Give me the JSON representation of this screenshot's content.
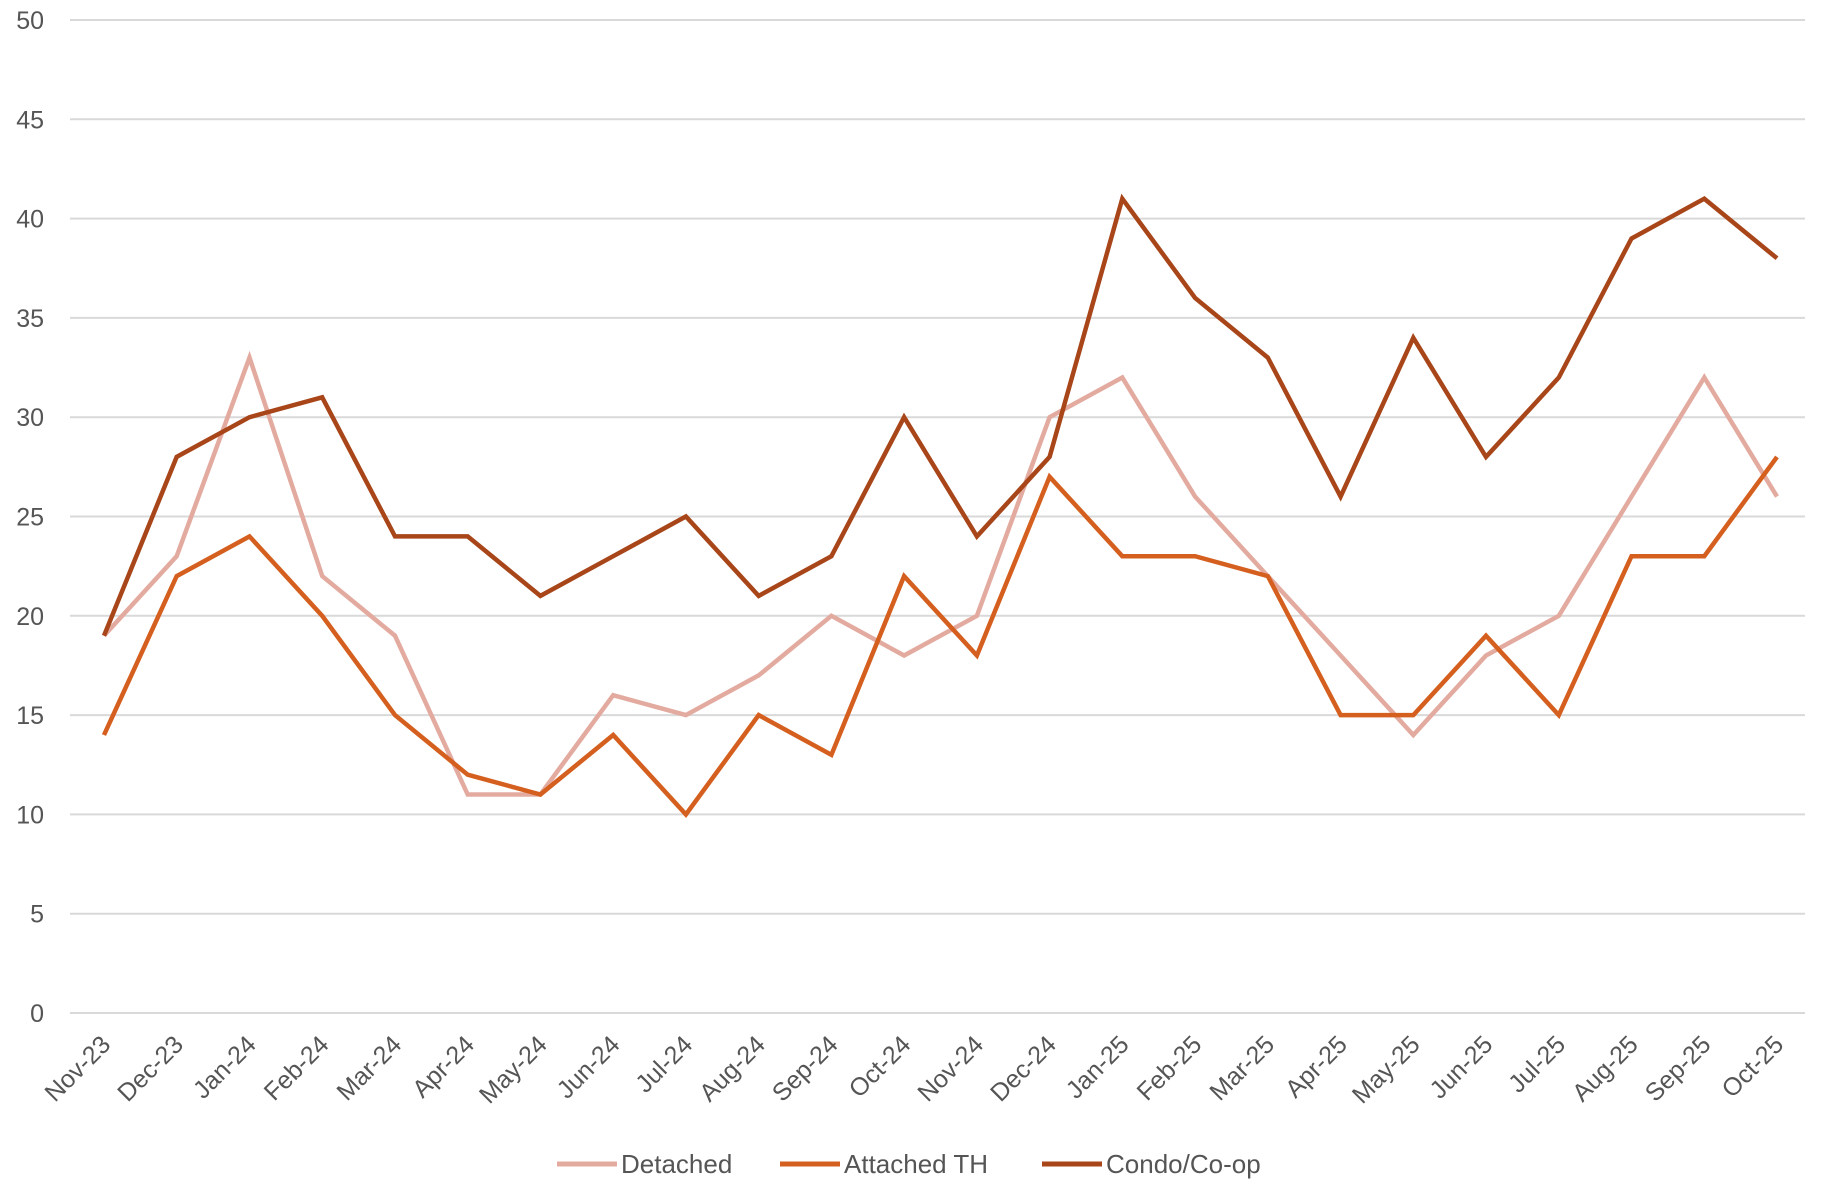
{
  "chart_data": {
    "type": "line",
    "title": "",
    "xlabel": "",
    "ylabel": "",
    "ylim": [
      0,
      50
    ],
    "y_ticks": [
      0,
      5,
      10,
      15,
      20,
      25,
      30,
      35,
      40,
      45,
      50
    ],
    "grid": true,
    "legend_position": "bottom",
    "categories": [
      "Nov-23",
      "Dec-23",
      "Jan-24",
      "Feb-24",
      "Mar-24",
      "Apr-24",
      "May-24",
      "Jun-24",
      "Jul-24",
      "Aug-24",
      "Sep-24",
      "Oct-24",
      "Nov-24",
      "Dec-24",
      "Jan-25",
      "Feb-25",
      "Mar-25",
      "Apr-25",
      "May-25",
      "Jun-25",
      "Jul-25",
      "Aug-25",
      "Sep-25",
      "Oct-25"
    ],
    "series": [
      {
        "name": "Detached",
        "color": "#e3aba0",
        "values": [
          19,
          23,
          33,
          22,
          19,
          11,
          11,
          16,
          15,
          17,
          20,
          18,
          20,
          30,
          32,
          26,
          22,
          18,
          14,
          18,
          20,
          26,
          32,
          26
        ]
      },
      {
        "name": "Attached TH",
        "color": "#d45f1e",
        "values": [
          14,
          22,
          24,
          20,
          15,
          12,
          11,
          14,
          10,
          15,
          13,
          22,
          18,
          27,
          23,
          23,
          22,
          15,
          15,
          19,
          15,
          23,
          23,
          28
        ]
      },
      {
        "name": "Condo/Co-op",
        "color": "#a8461a",
        "values": [
          19,
          28,
          30,
          31,
          24,
          24,
          21,
          23,
          25,
          21,
          23,
          30,
          24,
          28,
          41,
          36,
          33,
          26,
          34,
          28,
          32,
          39,
          41,
          38
        ]
      }
    ]
  }
}
